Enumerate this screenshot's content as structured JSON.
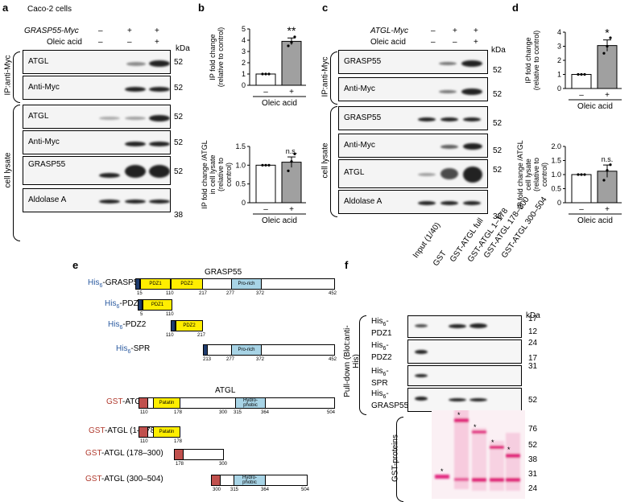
{
  "panel_labels": {
    "a": "a",
    "b": "b",
    "c": "c",
    "d": "d",
    "e": "e",
    "f": "f"
  },
  "panel_a": {
    "title": "Caco-2 cells",
    "row1_label": "GRASP55-Myc",
    "row2_label": "Oleic acid",
    "row1_signs": [
      "–",
      "+",
      "+"
    ],
    "row2_signs": [
      "–",
      "–",
      "+"
    ],
    "kda": "kDa",
    "ip_group": "IP:anti-Myc",
    "lysate_group": "cell lysate",
    "blots": [
      "ATGL",
      "Anti-Myc",
      "ATGL",
      "Anti-Myc",
      "GRASP55",
      "Aldolase A"
    ],
    "markers": [
      "52",
      "52",
      "52",
      "52",
      "52",
      "38"
    ]
  },
  "panel_c": {
    "row1_label": "ATGL-Myc",
    "row2_label": "Oleic acid",
    "row1_signs": [
      "–",
      "+",
      "+"
    ],
    "row2_signs": [
      "–",
      "–",
      "+"
    ],
    "kda": "kDa",
    "ip_group": "IP:anti-Myc",
    "lysate_group": "cell lysate",
    "blots": [
      "GRASP55",
      "Anti-Myc",
      "GRASP55",
      "Anti-Myc",
      "ATGL",
      "Aldolase A"
    ],
    "markers": [
      "52",
      "52",
      "52",
      "52",
      "52",
      "38"
    ]
  },
  "chart_data": [
    {
      "type": "bar",
      "panel": "b-top",
      "ylabel": "IP fold change (relative to control)",
      "xlabel": "Oleic acid",
      "categories": [
        "–",
        "+"
      ],
      "values": [
        1.0,
        3.9
      ],
      "errors": [
        0,
        0.3
      ],
      "points": [
        [
          1,
          1,
          1
        ],
        [
          3.5,
          3.8,
          4.3
        ]
      ],
      "ylim": [
        0,
        5
      ],
      "yticks": [
        "0",
        "1",
        "2",
        "3",
        "4",
        "5"
      ],
      "annotation": "**"
    },
    {
      "type": "bar",
      "panel": "b-bottom",
      "ylabel": "IP fold change /ATGL in cell lysate (relative to control)",
      "xlabel": "Oleic acid",
      "categories": [
        "–",
        "+"
      ],
      "values": [
        1.0,
        1.08
      ],
      "errors": [
        0,
        0.14
      ],
      "points": [
        [
          1,
          1,
          1
        ],
        [
          0.85,
          1.1,
          1.3
        ]
      ],
      "ylim": [
        0,
        1.5
      ],
      "yticks": [
        "0",
        "0.5",
        "1.0",
        "1.5"
      ],
      "annotation": "n.s."
    },
    {
      "type": "bar",
      "panel": "d-top",
      "ylabel": "IP fold change (relative to control)",
      "xlabel": "Oleic acid",
      "categories": [
        "–",
        "+"
      ],
      "values": [
        1.0,
        3.05
      ],
      "errors": [
        0,
        0.4
      ],
      "points": [
        [
          1,
          1,
          1
        ],
        [
          2.5,
          3.0,
          3.6
        ]
      ],
      "ylim": [
        0,
        4
      ],
      "yticks": [
        "0",
        "1",
        "2",
        "3",
        "4"
      ],
      "annotation": "*"
    },
    {
      "type": "bar",
      "panel": "d-bottom",
      "ylabel": "IP fold change /ATGL cell lysate (relative to control)",
      "xlabel": "Oleic acid",
      "categories": [
        "–",
        "+"
      ],
      "values": [
        1.0,
        1.12
      ],
      "errors": [
        0,
        0.22
      ],
      "points": [
        [
          1,
          1,
          1
        ],
        [
          0.8,
          1.15,
          1.35
        ]
      ],
      "ylim": [
        0,
        2.0
      ],
      "yticks": [
        "0",
        "0.5",
        "1.0",
        "1.5",
        "2.0"
      ],
      "annotation": "n.s."
    }
  ],
  "panel_e": {
    "grasp_title": "GRASP55",
    "atgl_title": "ATGL",
    "his_prefix": "His",
    "his_sub": "6",
    "gst_prefix": "GST",
    "grasp_constructs": [
      "-GRASP55",
      "-PDZ1",
      "-PDZ2",
      "-SPR"
    ],
    "atgl_constructs": [
      "-ATGL",
      "-ATGL (1–178)",
      "-ATGL (178–300)",
      "-ATGL (300–504)"
    ],
    "domains": {
      "pdz1": "PDZ1",
      "pdz2": "PDZ2",
      "prorich": "Pro-rich",
      "patatin": "Patatin",
      "hydro1": "Hydro-",
      "hydro2": "phobic"
    },
    "grasp_ticks": {
      "full": [
        "15",
        "110",
        "217",
        "277",
        "372",
        "452"
      ],
      "pdz1": [
        "5",
        "110"
      ],
      "pdz2": [
        "110",
        "217"
      ],
      "spr": [
        "213",
        "277",
        "372",
        "452"
      ]
    },
    "atgl_ticks": {
      "full": [
        "110",
        "178",
        "300",
        "315",
        "364",
        "504"
      ],
      "n": [
        "110",
        "178"
      ],
      "mid": [
        "178",
        "300"
      ],
      "c": [
        "300",
        "315",
        "364",
        "504"
      ]
    }
  },
  "panel_f": {
    "lanes": [
      "Input (1/40)",
      "GST",
      "GST-ATGL full",
      "GST-ATGL 1–178",
      "GST-ATGL 178–300",
      "GST-ATGL 300–504"
    ],
    "kda": "kDa",
    "pulldown_group": "Pull-down (Blot:anti-His)",
    "gst_group": "GST-proteins",
    "blots": [
      {
        "line1": "His",
        "sub": "6",
        "line2": "-",
        "line3": "PDZ1",
        "markers": [
          "17",
          "12"
        ]
      },
      {
        "line1": "His",
        "sub": "6",
        "line2": "-",
        "line3": "PDZ2",
        "markers": [
          "24",
          "17"
        ]
      },
      {
        "line1": "His",
        "sub": "6",
        "line2": "-",
        "line3": "SPR",
        "markers": [
          "31"
        ]
      },
      {
        "line1": "His",
        "sub": "6",
        "line2": "-",
        "line3": "GRASP55",
        "markers": [
          "52"
        ]
      }
    ],
    "gel_markers": [
      "76",
      "52",
      "38",
      "31",
      "24"
    ],
    "star": "*"
  }
}
